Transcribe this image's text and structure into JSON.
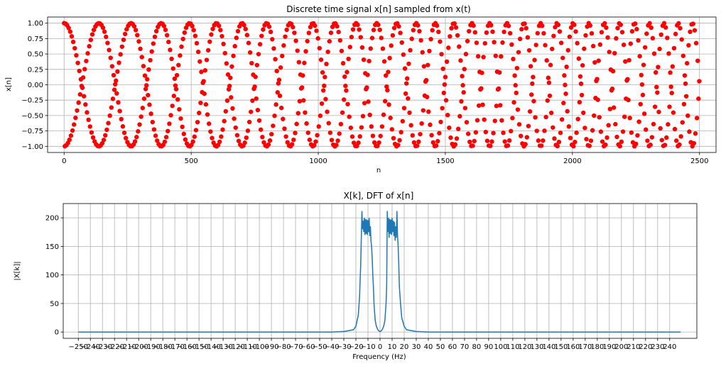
{
  "chart_data": [
    {
      "type": "scatter",
      "title": "Discrete time signal x[n] sampled from x(t)",
      "xlabel": "n",
      "ylabel": "x[n]",
      "xlim": [
        -65,
        2565
      ],
      "ylim": [
        -1.1,
        1.1
      ],
      "xticks": [
        0,
        500,
        1000,
        1500,
        2000,
        2500
      ],
      "yticks": [
        -1.0,
        -0.75,
        -0.5,
        -0.25,
        0.0,
        0.25,
        0.5,
        0.75,
        1.0
      ],
      "ytick_labels": [
        "−1.00",
        "−0.75",
        "−0.50",
        "−0.25",
        "0.00",
        "0.25",
        "0.50",
        "0.75",
        "1.00"
      ],
      "grid": true,
      "marker_color": "#ff0000",
      "series": [
        {
          "n_start": 0,
          "n_end": 2500,
          "n_step": 1,
          "decimate_every": 3,
          "signal": "chirp cos(pi*(f0*n + (f1-f0)*n^2/2500)) sampled at 500 Hz, sweeping about 0 to 30 Hz",
          "f0_cycles_per_sample": 0.02,
          "f1_cycles_per_sample": 0.04,
          "fold_display": true
        }
      ]
    },
    {
      "type": "line",
      "title": "X[k], DFT of x[n]",
      "xlabel": "Frequency (Hz)",
      "ylabel": "|X[k]|",
      "xlim": [
        -262.5,
        262.5
      ],
      "ylim": [
        -11,
        225
      ],
      "xticks": [
        -250,
        -240,
        -230,
        -220,
        -210,
        -200,
        -190,
        -180,
        -170,
        -160,
        -150,
        -140,
        -130,
        -120,
        -110,
        -100,
        -90,
        -80,
        -70,
        -60,
        -50,
        -40,
        -30,
        -20,
        -10,
        0,
        10,
        20,
        30,
        40,
        50,
        60,
        70,
        80,
        90,
        100,
        110,
        120,
        130,
        140,
        150,
        160,
        170,
        180,
        190,
        200,
        210,
        220,
        230,
        240
      ],
      "xtick_labels": [
        "−250",
        "−240",
        "−230",
        "−220",
        "−210",
        "−200",
        "−190",
        "−180",
        "−170",
        "−160",
        "−150",
        "−140",
        "−130",
        "−120",
        "−110",
        "−100",
        "−90",
        "−80",
        "−70",
        "−60",
        "−50",
        "−40",
        "−30",
        "−20",
        "−10",
        "0",
        "10",
        "20",
        "30",
        "40",
        "50",
        "60",
        "70",
        "80",
        "90",
        "100",
        "110",
        "120",
        "130",
        "140",
        "150",
        "160",
        "170",
        "180",
        "190",
        "200",
        "210",
        "220",
        "230",
        "240"
      ],
      "yticks": [
        0,
        50,
        100,
        150,
        200
      ],
      "ytick_labels": [
        "0",
        "50",
        "100",
        "150",
        "200"
      ],
      "grid": true,
      "line_color": "#1f77b4",
      "series": [
        {
          "x": [
            -250,
            -40,
            -30,
            -22,
            -20,
            -18,
            -17,
            -16,
            -15.5,
            -15,
            -14.5,
            -14,
            -13.5,
            -13,
            -12.5,
            -12,
            -11.5,
            -11,
            -10.5,
            -10,
            -9.5,
            -9,
            -8.5,
            -8,
            -7.5,
            -7,
            -6.5,
            -6,
            -5.5,
            -5,
            -4,
            -3,
            -2,
            -1,
            0,
            1,
            2,
            3,
            4,
            5,
            5.5,
            6,
            6.5,
            7,
            7.5,
            8,
            8.5,
            9,
            9.5,
            10,
            10.5,
            11,
            11.5,
            12,
            12.5,
            13,
            13.5,
            14,
            14.5,
            15,
            15.5,
            16,
            17,
            18,
            20,
            22,
            30,
            40,
            249
          ],
          "y": [
            0,
            0,
            1,
            4,
            10,
            30,
            60,
            120,
            165,
            212,
            180,
            195,
            175,
            200,
            170,
            198,
            172,
            197,
            170,
            196,
            175,
            200,
            168,
            185,
            160,
            150,
            130,
            100,
            80,
            50,
            20,
            10,
            5,
            2,
            1,
            2,
            5,
            10,
            20,
            50,
            80,
            212,
            175,
            200,
            165,
            198,
            172,
            197,
            170,
            200,
            175,
            195,
            168,
            193,
            160,
            185,
            165,
            212,
            170,
            150,
            120,
            80,
            50,
            25,
            10,
            4,
            1,
            0,
            0
          ]
        }
      ]
    }
  ]
}
